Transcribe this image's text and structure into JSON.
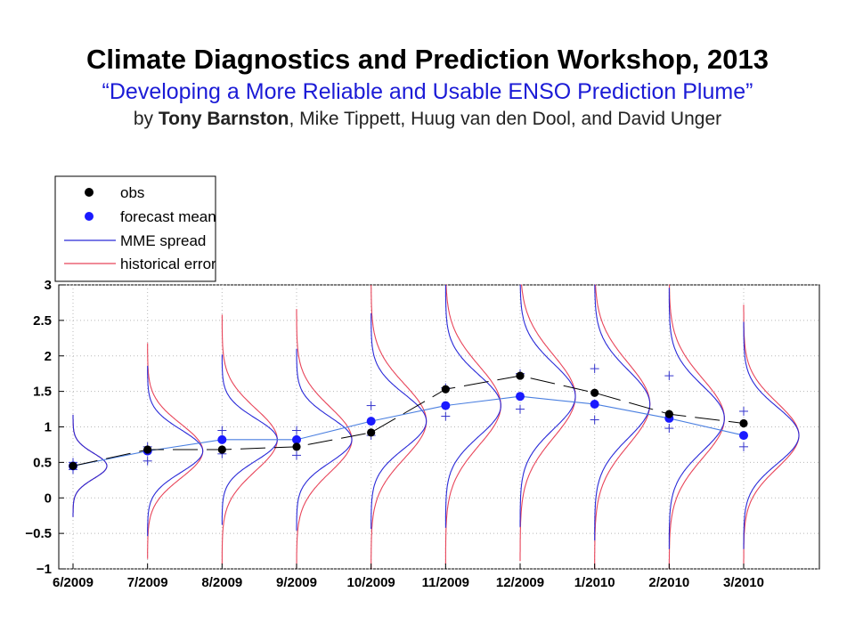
{
  "header": {
    "title": "Climate Diagnostics and Prediction Workshop, 2013",
    "subtitle": "“Developing a More Reliable and Usable ENSO Prediction Plume”",
    "byline_prefix": "by ",
    "byline_bold": "Tony Barnston",
    "byline_rest": ", Mike Tippett, Huug van den Dool, and David Unger"
  },
  "chart_data": {
    "type": "line",
    "title": "",
    "xlabel": "",
    "ylabel": "",
    "categories": [
      "6/2009",
      "7/2009",
      "8/2009",
      "9/2009",
      "10/2009",
      "11/2009",
      "12/2009",
      "1/2010",
      "2/2010",
      "3/2010"
    ],
    "ylim": [
      -1,
      3
    ],
    "yticks": [
      -1,
      -0.5,
      0,
      0.5,
      1,
      1.5,
      2,
      2.5,
      3
    ],
    "ytick_labels": [
      "−1",
      "−0.5",
      "0",
      "0.5",
      "1",
      "1.5",
      "2",
      "2.5",
      "3"
    ],
    "grid": true,
    "legend_position": "top-left, above plot",
    "series": [
      {
        "name": "obs",
        "marker": "dot",
        "color": "#000000",
        "values": [
          0.45,
          0.68,
          0.68,
          0.72,
          0.92,
          1.53,
          1.72,
          1.48,
          1.18,
          1.05
        ]
      },
      {
        "name": "forecast mean",
        "marker": "dot",
        "color": "#1a1aff",
        "values": [
          0.45,
          0.66,
          0.82,
          0.82,
          1.08,
          1.3,
          1.43,
          1.32,
          1.12,
          0.88
        ]
      },
      {
        "name": "MME spread",
        "marker": "curve",
        "color": "#2a2ad8",
        "values": [
          0.18,
          0.3,
          0.3,
          0.32,
          0.38,
          0.43,
          0.46,
          0.48,
          0.46,
          0.4
        ]
      },
      {
        "name": "historical error",
        "marker": "curve",
        "color": "#e8455a",
        "values": [
          0.18,
          0.38,
          0.44,
          0.46,
          0.52,
          0.56,
          0.58,
          0.58,
          0.56,
          0.46
        ]
      }
    ],
    "member_spread": [
      [
        0.5,
        0.4
      ],
      [
        0.72,
        0.52
      ],
      [
        0.95,
        0.62
      ],
      [
        0.95,
        0.6
      ],
      [
        1.3,
        0.88
      ],
      [
        1.55,
        1.15
      ],
      [
        1.75,
        1.25
      ],
      [
        1.82,
        1.1
      ],
      [
        1.72,
        0.98
      ],
      [
        1.22,
        0.72
      ]
    ]
  }
}
